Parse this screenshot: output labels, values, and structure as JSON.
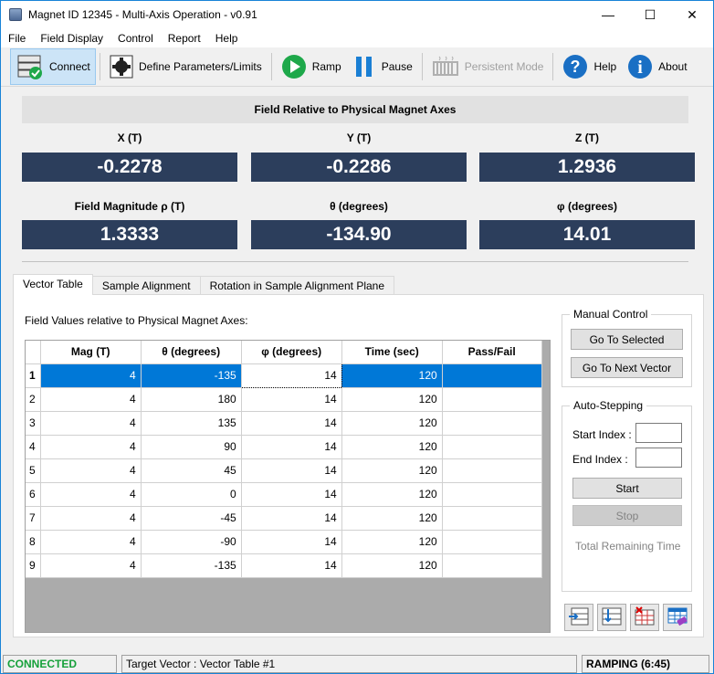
{
  "window": {
    "title": "Magnet ID 12345 - Multi-Axis Operation - v0.91",
    "minimize": "—",
    "maximize": "☐",
    "close": "✕"
  },
  "menu": [
    "File",
    "Field Display",
    "Control",
    "Report",
    "Help"
  ],
  "toolbar": {
    "connect": "Connect",
    "define": "Define Parameters/Limits",
    "ramp": "Ramp",
    "pause": "Pause",
    "persistent": "Persistent Mode",
    "help": "Help",
    "about": "About"
  },
  "field": {
    "header": "Field Relative to Physical Magnet Axes",
    "x_label": "X (T)",
    "x_value": "-0.2278",
    "y_label": "Y (T)",
    "y_value": "-0.2286",
    "z_label": "Z (T)",
    "z_value": "1.2936",
    "mag_label": "Field Magnitude ρ (T)",
    "mag_value": "1.3333",
    "theta_label": "θ (degrees)",
    "theta_value": "-134.90",
    "phi_label": "φ (degrees)",
    "phi_value": "14.01"
  },
  "tabs": [
    "Vector Table",
    "Sample Alignment",
    "Rotation in Sample Alignment Plane"
  ],
  "vector_table": {
    "caption": "Field Values relative to Physical Magnet Axes:",
    "columns": [
      "Mag (T)",
      "θ (degrees)",
      "φ (degrees)",
      "Time (sec)",
      "Pass/Fail"
    ],
    "rows": [
      [
        "1",
        "4",
        "-135",
        "14",
        "120",
        ""
      ],
      [
        "2",
        "4",
        "180",
        "14",
        "120",
        ""
      ],
      [
        "3",
        "4",
        "135",
        "14",
        "120",
        ""
      ],
      [
        "4",
        "4",
        "90",
        "14",
        "120",
        ""
      ],
      [
        "5",
        "4",
        "45",
        "14",
        "120",
        ""
      ],
      [
        "6",
        "4",
        "0",
        "14",
        "120",
        ""
      ],
      [
        "7",
        "4",
        "-45",
        "14",
        "120",
        ""
      ],
      [
        "8",
        "4",
        "-90",
        "14",
        "120",
        ""
      ],
      [
        "9",
        "4",
        "-135",
        "14",
        "120",
        ""
      ]
    ]
  },
  "manual": {
    "title": "Manual Control",
    "go_selected": "Go To Selected",
    "go_next": "Go To Next Vector"
  },
  "auto": {
    "title": "Auto-Stepping",
    "start_index_label": "Start Index :",
    "start_index_value": "",
    "end_index_label": "End Index :",
    "end_index_value": "",
    "start": "Start",
    "stop": "Stop",
    "remaining": "Total Remaining Time"
  },
  "status": {
    "connection": "CONNECTED",
    "target": "Target Vector : Vector Table #1",
    "state": "RAMPING (6:45)"
  },
  "colors": {
    "readout_bg": "#2c3e5c",
    "selection": "#0078d7",
    "connected": "#16a03a"
  }
}
